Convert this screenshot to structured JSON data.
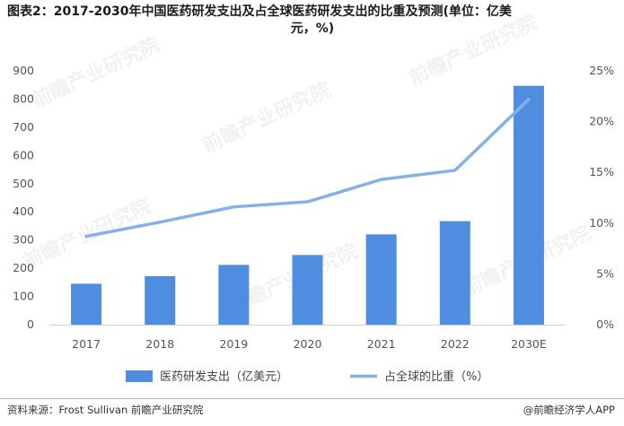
{
  "title": {
    "line1": "图表2：2017-2030年中国医药研发支出及占全球医药研发支出的比重及预测(单位：亿美",
    "line2": "元，%)"
  },
  "chart_data": {
    "type": "bar",
    "categories": [
      "2017",
      "2018",
      "2019",
      "2020",
      "2021",
      "2022",
      "2030E"
    ],
    "series": [
      {
        "name": "医药研发支出（亿美元）",
        "type": "bar",
        "axis": "left",
        "values": [
          145,
          172,
          212,
          247,
          320,
          367,
          847
        ],
        "color": "#4f8de0"
      },
      {
        "name": "占全球的比重（%）",
        "type": "line",
        "axis": "right",
        "values": [
          8.7,
          10.1,
          11.6,
          12.1,
          14.3,
          15.2,
          22.2
        ],
        "color": "#86b0e8"
      }
    ],
    "y_left": {
      "min": 0,
      "max": 900,
      "ticks": [
        0,
        100,
        200,
        300,
        400,
        500,
        600,
        700,
        800,
        900
      ]
    },
    "y_right": {
      "min": 0,
      "max": 25,
      "ticks": [
        "0%",
        "5%",
        "10%",
        "15%",
        "20%",
        "25%"
      ]
    },
    "grid": false,
    "legend": "bottom"
  },
  "footer": {
    "source": "资料来源：Frost Sullivan 前瞻产业研究院",
    "brand": "@前瞻经济学人APP"
  },
  "watermark": "前瞻产业研究院"
}
